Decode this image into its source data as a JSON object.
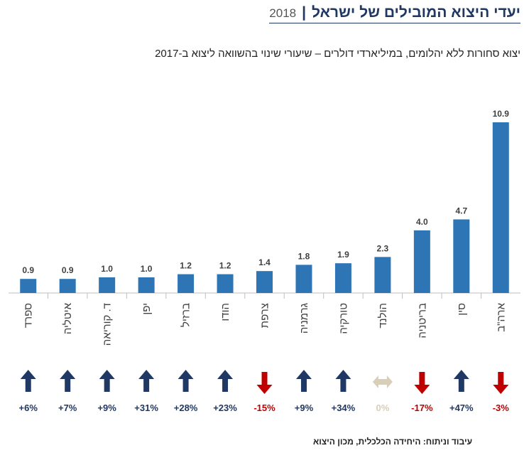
{
  "header": {
    "title": "יעדי היצוא המובילים של ישראל",
    "separator": "|",
    "year": "2018"
  },
  "subtitle": "יצוא סחורות ללא יהלומים, במיליארדי  דולרים – שיעורי שינוי בהשוואה ליצוא ב-2017",
  "footer": "עיבוד וניתוח: היחידה הכלכלית, מכון היצוא",
  "colors": {
    "bar": "#2e75b6",
    "up": "#1f3864",
    "down": "#c00000",
    "neutral": "#d9cfb8",
    "label": "#1f3864"
  },
  "chart_data": {
    "type": "bar",
    "title": "יעדי היצוא המובילים של ישראל",
    "subtitle": "יצוא סחורות ללא יהלומים, במיליארדי  דולרים – שיעורי שינוי בהשוואה ליצוא ב-2017",
    "categories": [
      "ספרד",
      "איטליה",
      "ד. קוריאה",
      "יפן",
      "ברזיל",
      "הודו",
      "צרפת",
      "גרמניה",
      "טורקיה",
      "הולנד",
      "בריטניה",
      "סין",
      "ארה\"ב"
    ],
    "values": [
      0.9,
      0.9,
      1.0,
      1.0,
      1.2,
      1.2,
      1.4,
      1.8,
      1.9,
      2.3,
      4.0,
      4.7,
      10.9
    ],
    "value_labels": [
      "0.9",
      "0.9",
      "1.0",
      "1.0",
      "1.2",
      "1.2",
      "1.4",
      "1.8",
      "1.9",
      "2.3",
      "4.0",
      "4.7",
      "10.9"
    ],
    "change_labels": [
      "+6%",
      "+7%",
      "+9%",
      "+31%",
      "+28%",
      "+23%",
      "-15%",
      "+9%",
      "+34%",
      "0%",
      "-17%",
      "+47%",
      "-3%"
    ],
    "change_direction": [
      "up",
      "up",
      "up",
      "up",
      "up",
      "up",
      "down",
      "up",
      "up",
      "flat",
      "down",
      "up",
      "down"
    ],
    "ylim": [
      0,
      10.9
    ],
    "grid": false,
    "legend": "none"
  }
}
